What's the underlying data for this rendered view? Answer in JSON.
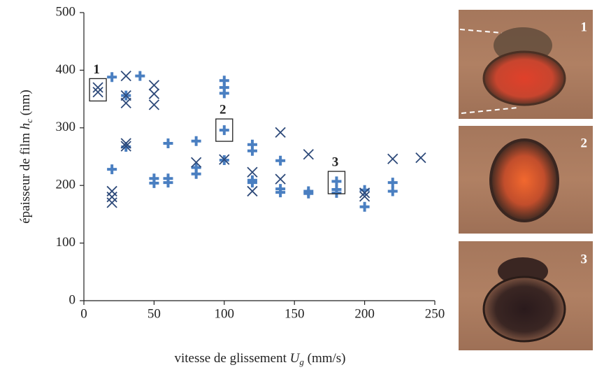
{
  "chart_data": {
    "type": "scatter",
    "xlabel_parts": [
      "vitesse de glissement ",
      "U",
      "g",
      " (mm/s)"
    ],
    "ylabel_parts": [
      "épaisseur de film ",
      "h",
      "c",
      " (nm)"
    ],
    "xlim": [
      0,
      250
    ],
    "xticks": [
      0,
      50,
      100,
      150,
      200,
      250
    ],
    "ylim": [
      0,
      500
    ],
    "yticks": [
      0,
      100,
      200,
      300,
      400,
      500
    ],
    "series": [
      {
        "marker": "plus",
        "color": "#4a7fc1",
        "x": [
          20,
          20,
          30,
          30,
          40,
          50,
          50,
          60,
          60,
          60,
          80,
          80,
          80,
          100,
          100,
          100,
          100,
          100,
          120,
          120,
          120,
          120,
          140,
          140,
          140,
          160,
          160,
          180,
          180,
          180,
          200,
          200,
          220,
          220
        ],
        "values": [
          228,
          388,
          356,
          267,
          390,
          212,
          204,
          212,
          205,
          273,
          277,
          231,
          220,
          382,
          370,
          360,
          296,
          244,
          271,
          260,
          209,
          205,
          243,
          194,
          188,
          190,
          186,
          207,
          193,
          187,
          192,
          163,
          205,
          190
        ]
      },
      {
        "marker": "x",
        "color": "#2e4a7a",
        "x": [
          10,
          10,
          20,
          20,
          20,
          30,
          30,
          30,
          30,
          30,
          50,
          50,
          50,
          80,
          100,
          120,
          120,
          140,
          140,
          160,
          200,
          200,
          220,
          240
        ],
        "values": [
          370,
          362,
          190,
          180,
          170,
          390,
          356,
          343,
          273,
          268,
          374,
          359,
          340,
          240,
          245,
          223,
          190,
          292,
          211,
          254,
          187,
          181,
          246,
          248
        ]
      }
    ],
    "annotations": [
      {
        "label": "1",
        "x": 10,
        "y": 366
      },
      {
        "label": "2",
        "x": 100,
        "y": 296
      },
      {
        "label": "3",
        "x": 180,
        "y": 205
      }
    ],
    "panels": [
      "1",
      "2",
      "3"
    ]
  }
}
